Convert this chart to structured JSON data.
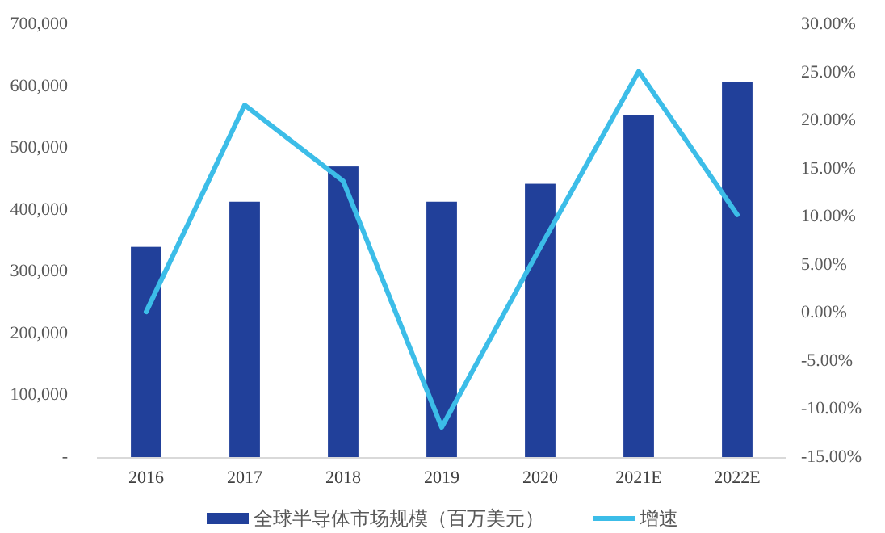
{
  "chart_data": {
    "type": "bar",
    "categories": [
      "2016",
      "2017",
      "2018",
      "2019",
      "2020",
      "2021E",
      "2022E"
    ],
    "series": [
      {
        "name": "全球半导体市场规模（百万美元）",
        "color": "#21409a",
        "values": [
          340000,
          413000,
          470000,
          413000,
          442000,
          553000,
          607000
        ]
      },
      {
        "name": "增速",
        "type": "line",
        "axis": "y2",
        "color": "#3cbde8",
        "values": [
          0.1,
          21.6,
          13.7,
          -11.9,
          6.8,
          25.1,
          10.2
        ]
      }
    ],
    "ylim": [
      0,
      700000
    ],
    "yticks": [
      {
        "value": 0,
        "label": "-"
      },
      {
        "value": 100000,
        "label": "100,000"
      },
      {
        "value": 200000,
        "label": "200,000"
      },
      {
        "value": 300000,
        "label": "300,000"
      },
      {
        "value": 400000,
        "label": "400,000"
      },
      {
        "value": 500000,
        "label": "500,000"
      },
      {
        "value": 600000,
        "label": "600,000"
      },
      {
        "value": 700000,
        "label": "700,000"
      }
    ],
    "y2lim": [
      -15,
      30
    ],
    "y2ticks": [
      {
        "value": -15,
        "label": "-15.00%"
      },
      {
        "value": -10,
        "label": "-10.00%"
      },
      {
        "value": -5,
        "label": "-5.00%"
      },
      {
        "value": 0,
        "label": "0.00%"
      },
      {
        "value": 5,
        "label": "5.00%"
      },
      {
        "value": 10,
        "label": "10.00%"
      },
      {
        "value": 15,
        "label": "15.00%"
      },
      {
        "value": 20,
        "label": "20.00%"
      },
      {
        "value": 25,
        "label": "25.00%"
      },
      {
        "value": 30,
        "label": "30.00%"
      }
    ],
    "grid": false,
    "legend": "bottom",
    "marker": "none"
  }
}
